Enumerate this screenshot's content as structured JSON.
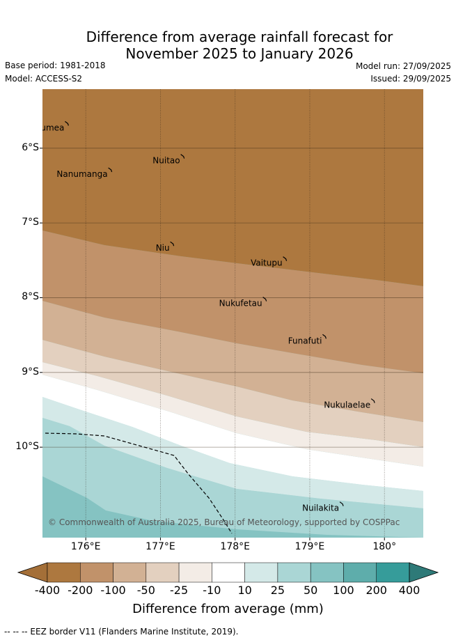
{
  "title": {
    "line1": "Difference from average rainfall forecast for",
    "line2": "November 2025 to January 2026"
  },
  "meta": {
    "base_period": "Base period: 1981-2018",
    "model": "Model: ACCESS-S2",
    "model_run": "Model run: 27/09/2025",
    "issued": "Issued: 29/09/2025"
  },
  "map": {
    "lat_labels": [
      "6°S",
      "7°S",
      "8°S",
      "9°S",
      "10°S"
    ],
    "lon_labels": [
      "176°E",
      "177°E",
      "178°E",
      "179°E",
      "180°"
    ],
    "islands": [
      {
        "name": "Nanumea",
        "lon": 175.75,
        "lat": -5.67
      },
      {
        "name": "Nuitao",
        "lon": 177.3,
        "lat": -6.11
      },
      {
        "name": "Nanumanga",
        "lon": 176.33,
        "lat": -6.29
      },
      {
        "name": "Niu",
        "lon": 177.16,
        "lat": -7.28
      },
      {
        "name": "Vaitupu",
        "lon": 178.67,
        "lat": -7.48
      },
      {
        "name": "Nukufetau",
        "lon": 178.4,
        "lat": -8.02
      },
      {
        "name": "Funafuti",
        "lon": 179.2,
        "lat": -8.52
      },
      {
        "name": "Nukulaelae",
        "lon": 179.85,
        "lat": -9.38
      },
      {
        "name": "Nuilakita",
        "lon": 179.43,
        "lat": -10.76
      }
    ],
    "copyright": "© Commonwealth of Australia 2025, Bureau of Meteorology, supported by COSPPac"
  },
  "colorbar": {
    "title": "Difference from average (mm)",
    "labels": [
      "-400",
      "-200",
      "-100",
      "-50",
      "-25",
      "-10",
      "10",
      "25",
      "50",
      "100",
      "200",
      "400"
    ],
    "colors": [
      "#a46f38",
      "#ad783f",
      "#c1926a",
      "#d2b194",
      "#e3d0bf",
      "#f3ece6",
      "#ffffff",
      "#d4e9e8",
      "#aad6d5",
      "#85c3c2",
      "#5eadab",
      "#369c9a",
      "#2e7a78"
    ]
  },
  "footnote": "-- -- -- EEZ border V11 (Flanders Marine Institute, 2019)."
}
